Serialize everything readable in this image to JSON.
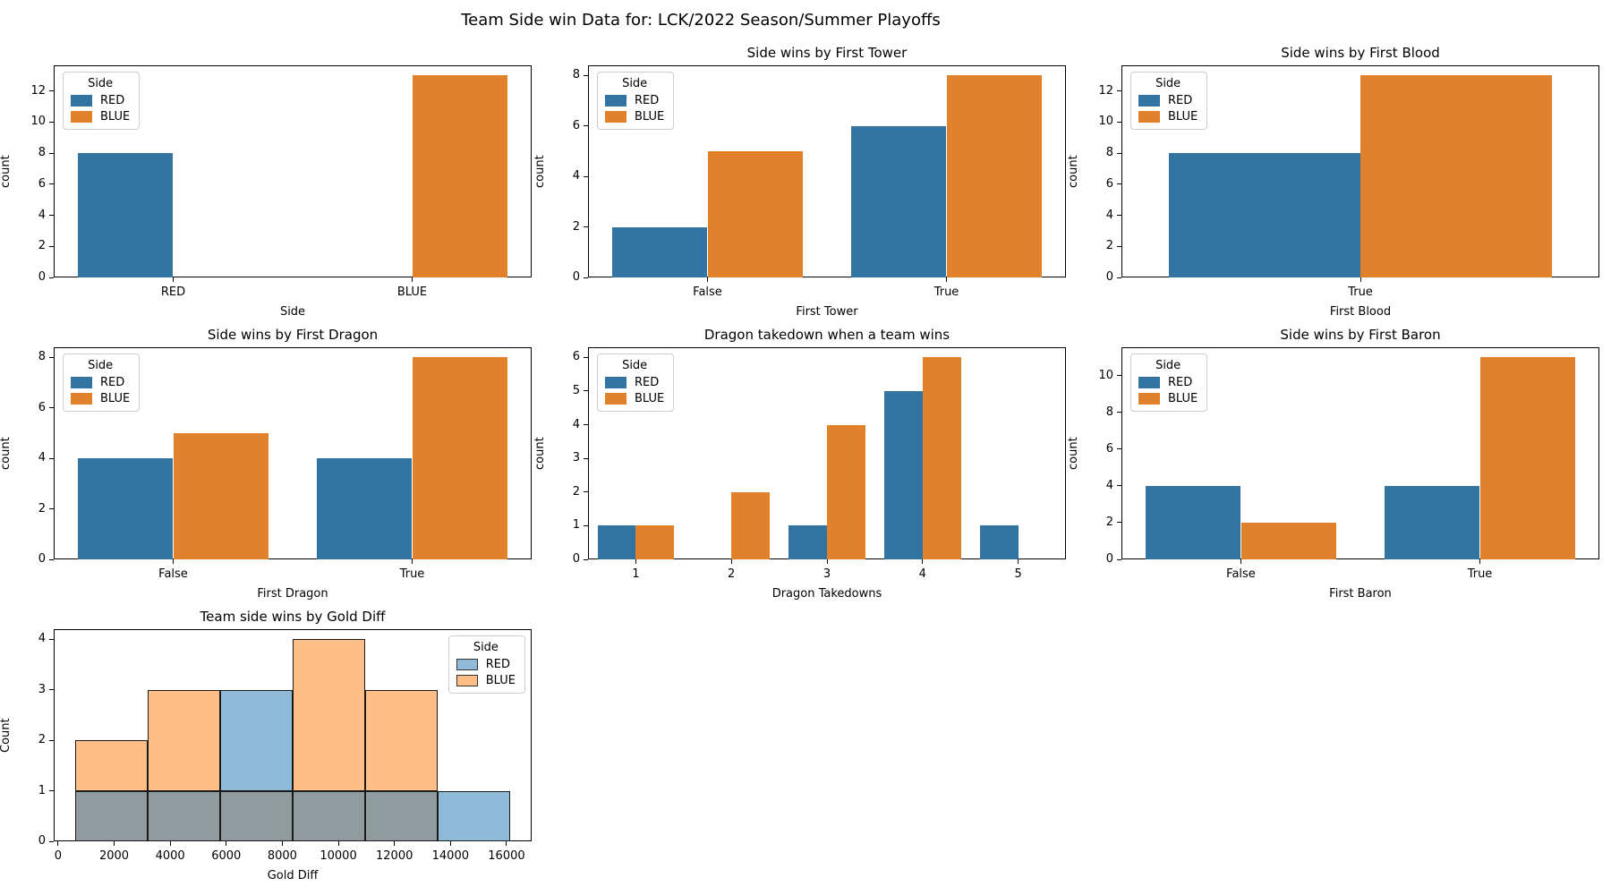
{
  "figure": {
    "title": "Team Side win Data for: LCK/2022 Season/Summer Playoffs"
  },
  "palette": {
    "RED": "#3274a1",
    "BLUE": "#e1812c",
    "hist_RED": "#8fbbd9",
    "hist_BLUE": "#ffbe86",
    "hist_overlap": "#8f9b9d",
    "hist_edge": "#1a1a1a"
  },
  "chart_data": [
    {
      "id": "side",
      "type": "bar",
      "title": "",
      "xlabel": "Side",
      "ylabel": "count",
      "categories": [
        "RED",
        "BLUE"
      ],
      "series": [
        {
          "name": "RED",
          "values": [
            8,
            0
          ]
        },
        {
          "name": "BLUE",
          "values": [
            0,
            13
          ]
        }
      ],
      "yticks": [
        0,
        2,
        4,
        6,
        8,
        10,
        12
      ],
      "ymax": 13.65,
      "legend": {
        "title": "Side",
        "entries": [
          "RED",
          "BLUE"
        ],
        "position": "upper left"
      }
    },
    {
      "id": "first-tower",
      "type": "bar",
      "title": "Side wins by First Tower",
      "xlabel": "First Tower",
      "ylabel": "count",
      "categories": [
        "False",
        "True"
      ],
      "series": [
        {
          "name": "RED",
          "values": [
            2,
            6
          ]
        },
        {
          "name": "BLUE",
          "values": [
            5,
            8
          ]
        }
      ],
      "yticks": [
        0,
        2,
        4,
        6,
        8
      ],
      "ymax": 8.4,
      "legend": {
        "title": "Side",
        "entries": [
          "RED",
          "BLUE"
        ],
        "position": "upper left"
      }
    },
    {
      "id": "first-blood",
      "type": "bar",
      "title": "Side wins by First Blood",
      "xlabel": "First Blood",
      "ylabel": "count",
      "categories": [
        "True"
      ],
      "series": [
        {
          "name": "RED",
          "values": [
            8
          ]
        },
        {
          "name": "BLUE",
          "values": [
            13
          ]
        }
      ],
      "yticks": [
        0,
        2,
        4,
        6,
        8,
        10,
        12
      ],
      "ymax": 13.65,
      "legend": {
        "title": "Side",
        "entries": [
          "RED",
          "BLUE"
        ],
        "position": "upper left"
      }
    },
    {
      "id": "first-dragon",
      "type": "bar",
      "title": "Side wins by First Dragon",
      "xlabel": "First Dragon",
      "ylabel": "count",
      "categories": [
        "False",
        "True"
      ],
      "series": [
        {
          "name": "RED",
          "values": [
            4,
            4
          ]
        },
        {
          "name": "BLUE",
          "values": [
            5,
            8
          ]
        }
      ],
      "yticks": [
        0,
        2,
        4,
        6,
        8
      ],
      "ymax": 8.4,
      "legend": {
        "title": "Side",
        "entries": [
          "RED",
          "BLUE"
        ],
        "position": "upper left"
      }
    },
    {
      "id": "dragon-takedowns",
      "type": "bar",
      "title": "Dragon takedown when a team wins",
      "xlabel": "Dragon Takedowns",
      "ylabel": "count",
      "categories": [
        "1",
        "2",
        "3",
        "4",
        "5"
      ],
      "series": [
        {
          "name": "RED",
          "values": [
            1,
            0,
            1,
            5,
            1
          ]
        },
        {
          "name": "BLUE",
          "values": [
            1,
            2,
            4,
            6,
            0
          ]
        }
      ],
      "yticks": [
        0,
        1,
        2,
        3,
        4,
        5,
        6
      ],
      "ymax": 6.3,
      "legend": {
        "title": "Side",
        "entries": [
          "RED",
          "BLUE"
        ],
        "position": "upper left"
      }
    },
    {
      "id": "first-baron",
      "type": "bar",
      "title": "Side wins by First Baron",
      "xlabel": "First Baron",
      "ylabel": "count",
      "categories": [
        "False",
        "True"
      ],
      "series": [
        {
          "name": "RED",
          "values": [
            4,
            4
          ]
        },
        {
          "name": "BLUE",
          "values": [
            2,
            11
          ]
        }
      ],
      "yticks": [
        0,
        2,
        4,
        6,
        8,
        10
      ],
      "ymax": 11.55,
      "legend": {
        "title": "Side",
        "entries": [
          "RED",
          "BLUE"
        ],
        "position": "upper left"
      }
    },
    {
      "id": "gold-diff",
      "type": "hist",
      "title": "Team side wins by Gold Diff",
      "xlabel": "Gold Diff",
      "ylabel": "Count",
      "bin_edges": [
        620,
        3203,
        5787,
        8370,
        10953,
        13537,
        16120
      ],
      "series": [
        {
          "name": "RED",
          "values": [
            1,
            1,
            3,
            1,
            1,
            1
          ]
        },
        {
          "name": "BLUE",
          "values": [
            2,
            3,
            1,
            4,
            3,
            0
          ]
        }
      ],
      "xlim": [
        -155,
        16895
      ],
      "xticks": [
        0,
        2000,
        4000,
        6000,
        8000,
        10000,
        12000,
        14000,
        16000
      ],
      "yticks": [
        0,
        1,
        2,
        3,
        4
      ],
      "ymax": 4.2,
      "legend": {
        "title": "Side",
        "entries": [
          "RED",
          "BLUE"
        ],
        "position": "upper right"
      }
    }
  ]
}
